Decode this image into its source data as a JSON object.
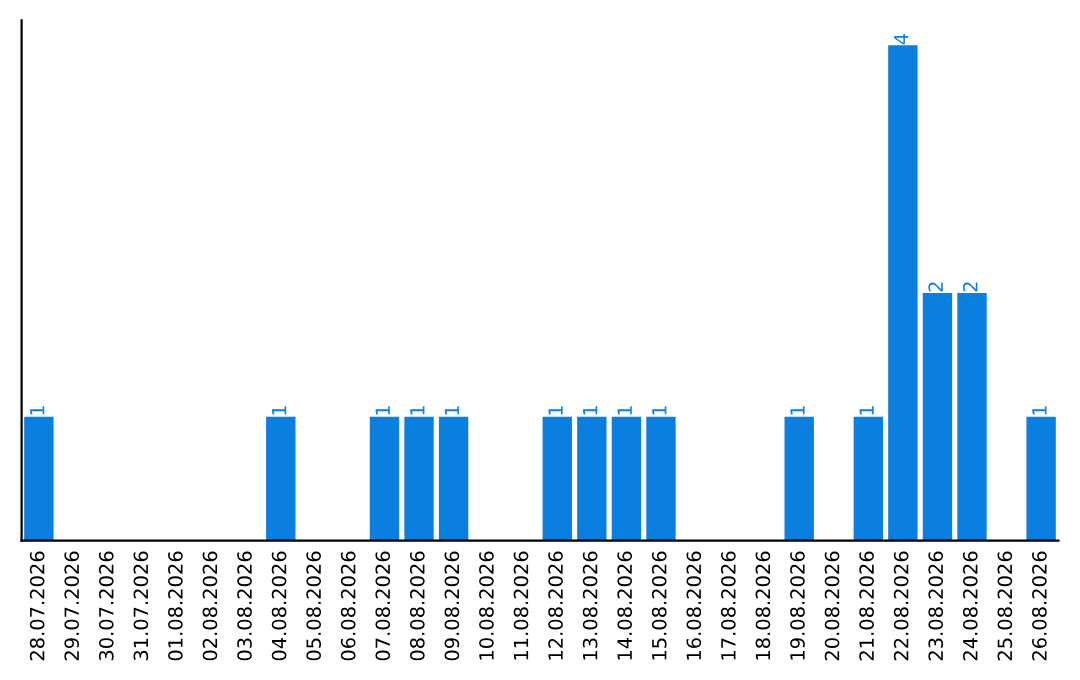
{
  "chart_data": {
    "type": "bar",
    "categories": [
      "28.07.2026",
      "29.07.2026",
      "30.07.2026",
      "31.07.2026",
      "01.08.2026",
      "02.08.2026",
      "03.08.2026",
      "04.08.2026",
      "05.08.2026",
      "06.08.2026",
      "07.08.2026",
      "08.08.2026",
      "09.08.2026",
      "10.08.2026",
      "11.08.2026",
      "12.08.2026",
      "13.08.2026",
      "14.08.2026",
      "15.08.2026",
      "16.08.2026",
      "17.08.2026",
      "18.08.2026",
      "19.08.2026",
      "20.08.2026",
      "21.08.2026",
      "22.08.2026",
      "23.08.2026",
      "24.08.2026",
      "25.08.2026",
      "26.08.2026"
    ],
    "values": [
      1,
      0,
      0,
      0,
      0,
      0,
      0,
      1,
      0,
      0,
      1,
      1,
      1,
      0,
      0,
      1,
      1,
      1,
      1,
      0,
      0,
      0,
      1,
      0,
      1,
      4,
      2,
      2,
      0,
      1
    ],
    "value_labels": [
      "1",
      null,
      null,
      null,
      null,
      null,
      null,
      "1",
      null,
      null,
      "1",
      "1",
      "1",
      null,
      null,
      "1",
      "1",
      "1",
      "1",
      null,
      null,
      null,
      "1",
      null,
      "1",
      "4",
      "2",
      "2",
      null,
      "1"
    ],
    "color": "#0a7fe0",
    "tick_labels": "x",
    "grid": false,
    "legend": false
  }
}
